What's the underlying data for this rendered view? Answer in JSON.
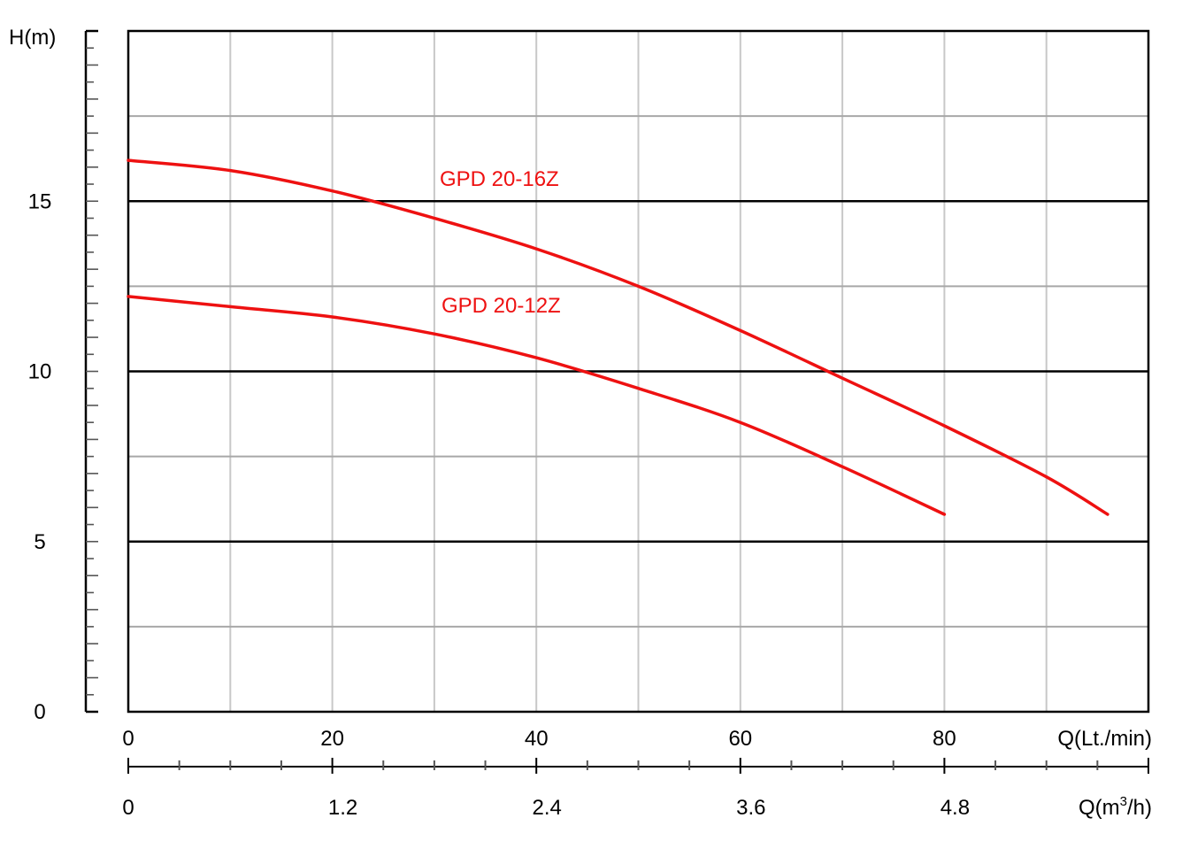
{
  "chart_data": {
    "type": "line",
    "title": "",
    "ylabel": "H(m)",
    "xlabel": "Q(Lt./min)",
    "xlabel2_prefix": "Q(m",
    "xlabel2_sup": "3",
    "xlabel2_suffix": "/h)",
    "xlim": [
      0,
      100
    ],
    "ylim": [
      0,
      20
    ],
    "y_ticks": [
      0,
      5,
      10,
      15
    ],
    "x_ticks": [
      0,
      20,
      40,
      60,
      80
    ],
    "x2_ticks": [
      "0",
      "1.2",
      "2.4",
      "3.6",
      "4.8"
    ],
    "grid": true,
    "series_color": "#ee1111",
    "series": [
      {
        "name": "GPD 20-16Z",
        "x": [
          0,
          10,
          20,
          30,
          40,
          50,
          60,
          70,
          80,
          90,
          96
        ],
        "y": [
          16.2,
          15.9,
          15.3,
          14.5,
          13.6,
          12.5,
          11.2,
          9.8,
          8.4,
          6.9,
          5.8
        ]
      },
      {
        "name": "GPD 20-12Z",
        "x": [
          0,
          10,
          20,
          30,
          40,
          50,
          60,
          70,
          80
        ],
        "y": [
          12.2,
          11.9,
          11.6,
          11.1,
          10.4,
          9.5,
          8.5,
          7.2,
          5.8
        ]
      }
    ]
  }
}
